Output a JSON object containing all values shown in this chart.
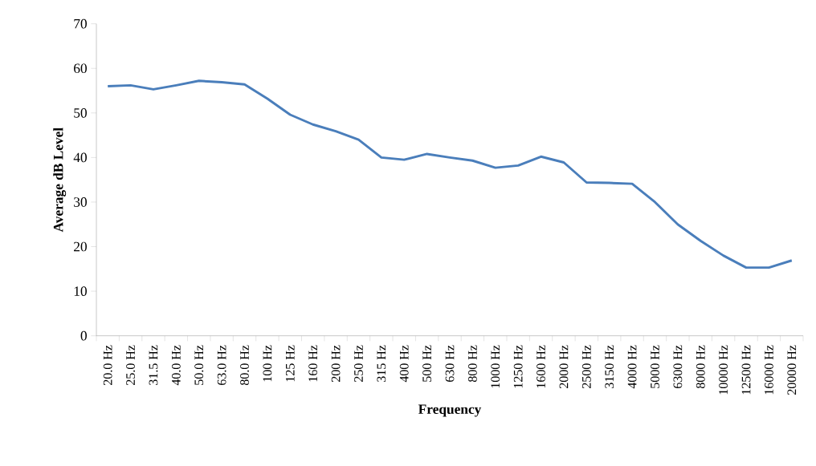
{
  "chart_data": {
    "type": "line",
    "xlabel": "Frequency",
    "ylabel": "Average dB Level",
    "categories": [
      "20.0 Hz",
      "25.0 Hz",
      "31.5 Hz",
      "40.0 Hz",
      "50.0 Hz",
      "63.0 Hz",
      "80.0 Hz",
      "100 Hz",
      "125 Hz",
      "160 Hz",
      "200 Hz",
      "250 Hz",
      "315 Hz",
      "400 Hz",
      "500 Hz",
      "630 Hz",
      "800 Hz",
      "1000 Hz",
      "1250 Hz",
      "1600 Hz",
      "2000 Hz",
      "2500 Hz",
      "3150 Hz",
      "4000 Hz",
      "5000 Hz",
      "6300 Hz",
      "8000 Hz",
      "10000 Hz",
      "12500 Hz",
      "16000 Hz",
      "20000 Hz"
    ],
    "values": [
      56,
      56.2,
      55.3,
      56.2,
      57.2,
      56.9,
      56.4,
      53.2,
      49.6,
      47.4,
      45.9,
      44,
      40,
      39.5,
      40.8,
      40,
      39.3,
      37.7,
      38.2,
      40.2,
      38.9,
      34.4,
      34.3,
      34.1,
      30,
      25,
      21.3,
      18,
      15.3,
      15.3,
      16.9
    ],
    "color": "#4a7ebb",
    "ylim": [
      0,
      70
    ],
    "yticks": [
      0,
      10,
      20,
      30,
      40,
      50,
      60,
      70
    ],
    "grid": false,
    "marker": "none",
    "line_style": "solid"
  }
}
